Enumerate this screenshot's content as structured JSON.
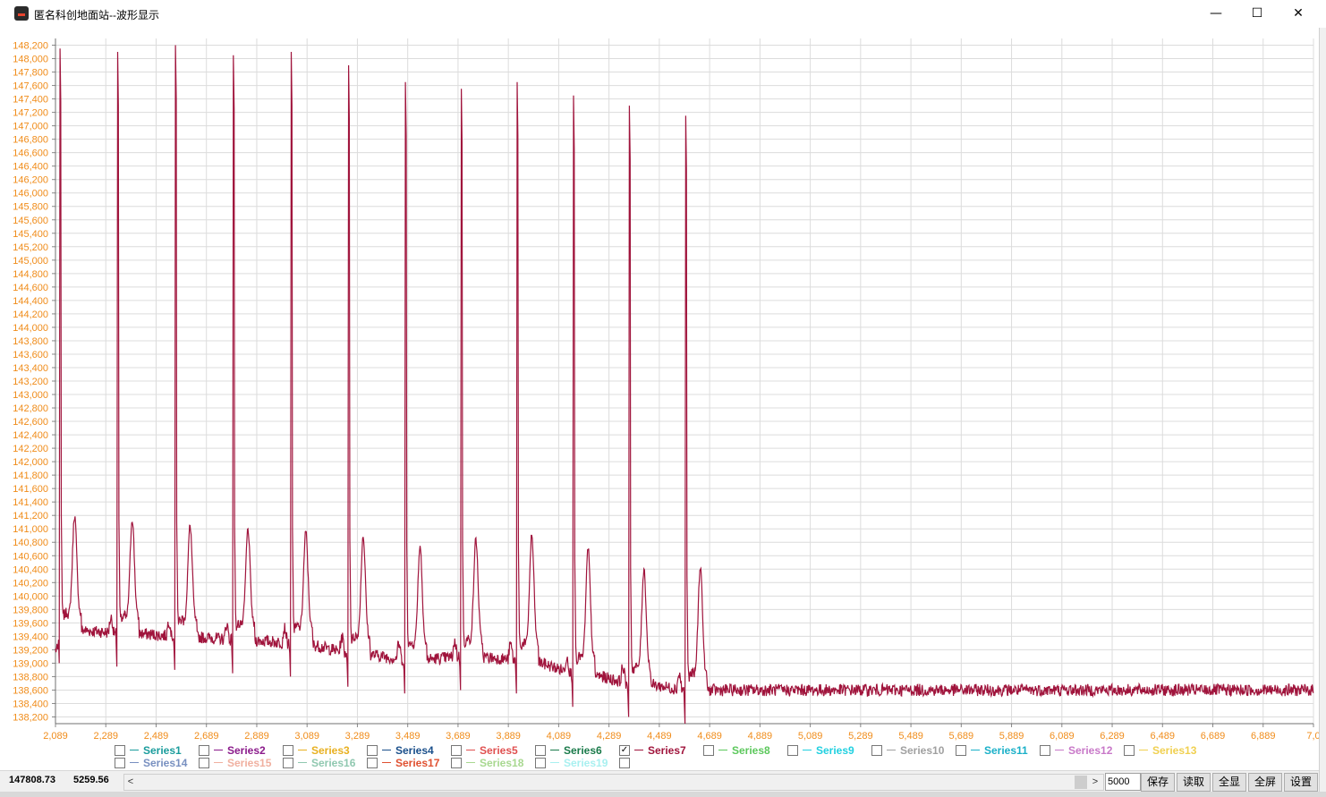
{
  "window": {
    "title": "匿名科创地面站--波形显示",
    "minimize": "—",
    "maximize": "☐",
    "close": "✕"
  },
  "colors": {
    "axis_label": "#f08c1a",
    "grid": "#dcdcdc",
    "series7": "#a0143c"
  },
  "chart_data": {
    "type": "line",
    "x_ticks": [
      "2,089",
      "2,289",
      "2,489",
      "2,689",
      "2,889",
      "3,089",
      "3,289",
      "3,489",
      "3,689",
      "3,889",
      "4,089",
      "4,289",
      "4,489",
      "4,689",
      "4,889",
      "5,089",
      "5,289",
      "5,489",
      "5,689",
      "5,889",
      "6,089",
      "6,289",
      "6,489",
      "6,689",
      "6,889",
      "7,0"
    ],
    "y_ticks": [
      "138,200",
      "138,400",
      "138,600",
      "138,800",
      "139,000",
      "139,200",
      "139,400",
      "139,600",
      "139,800",
      "140,000",
      "140,200",
      "140,400",
      "140,600",
      "140,800",
      "141,000",
      "141,200",
      "141,400",
      "141,600",
      "141,800",
      "142,000",
      "142,200",
      "142,400",
      "142,600",
      "142,800",
      "143,000",
      "143,200",
      "143,400",
      "143,600",
      "143,800",
      "144,000",
      "144,200",
      "144,400",
      "144,600",
      "144,800",
      "145,000",
      "145,200",
      "145,400",
      "145,600",
      "145,800",
      "146,000",
      "146,200",
      "146,400",
      "146,600",
      "146,800",
      "147,000",
      "147,200",
      "147,400",
      "147,600",
      "147,800",
      "148,000",
      "148,200"
    ],
    "xlim": [
      2089,
      7089
    ],
    "ylim": [
      138100,
      148300
    ],
    "series": [
      {
        "name": "Series7",
        "color": "#a0143c",
        "beats": [
          {
            "spike_x": 2107,
            "spike_y": 148150,
            "t_x": 2165,
            "t_y": 141200,
            "base_y": 139500
          },
          {
            "spike_x": 2336,
            "spike_y": 148100,
            "t_x": 2394,
            "t_y": 141150,
            "base_y": 139450
          },
          {
            "spike_x": 2566,
            "spike_y": 148200,
            "t_x": 2624,
            "t_y": 141050,
            "base_y": 139400
          },
          {
            "spike_x": 2796,
            "spike_y": 148050,
            "t_x": 2854,
            "t_y": 141000,
            "base_y": 139350
          },
          {
            "spike_x": 3026,
            "spike_y": 148100,
            "t_x": 3084,
            "t_y": 140950,
            "base_y": 139300
          },
          {
            "spike_x": 3254,
            "spike_y": 147900,
            "t_x": 3312,
            "t_y": 140900,
            "base_y": 139150
          },
          {
            "spike_x": 3480,
            "spike_y": 147650,
            "t_x": 3538,
            "t_y": 140750,
            "base_y": 139050
          },
          {
            "spike_x": 3702,
            "spike_y": 147550,
            "t_x": 3760,
            "t_y": 140850,
            "base_y": 139100
          },
          {
            "spike_x": 3924,
            "spike_y": 147650,
            "t_x": 3982,
            "t_y": 140900,
            "base_y": 139050
          },
          {
            "spike_x": 4148,
            "spike_y": 147450,
            "t_x": 4206,
            "t_y": 140700,
            "base_y": 138850
          },
          {
            "spike_x": 4370,
            "spike_y": 147300,
            "t_x": 4428,
            "t_y": 140400,
            "base_y": 138700
          },
          {
            "spike_x": 4594,
            "spike_y": 147150,
            "t_x": 4652,
            "t_y": 140450,
            "base_y": 138600
          }
        ],
        "first_base_y": 139200,
        "end_y": 138600
      }
    ],
    "legend": {
      "row1": [
        {
          "name": "Series1",
          "color": "#1a9c9c",
          "checked": false
        },
        {
          "name": "Series2",
          "color": "#8b1a8b",
          "checked": false
        },
        {
          "name": "Series3",
          "color": "#e8b020",
          "checked": false
        },
        {
          "name": "Series4",
          "color": "#1a4f8b",
          "checked": false
        },
        {
          "name": "Series5",
          "color": "#e05050",
          "checked": false
        },
        {
          "name": "Series6",
          "color": "#1a7a4a",
          "checked": false
        },
        {
          "name": "Series7",
          "color": "#a0143c",
          "checked": true
        },
        {
          "name": "Series8",
          "color": "#5cc85c",
          "checked": false
        },
        {
          "name": "Series9",
          "color": "#20d0e0",
          "checked": false
        },
        {
          "name": "Series10",
          "color": "#a0a0a0",
          "checked": false
        },
        {
          "name": "Series11",
          "color": "#1ab0c8",
          "checked": false
        },
        {
          "name": "Series12",
          "color": "#c878c8",
          "checked": false
        },
        {
          "name": "Series13",
          "color": "#f0d050",
          "checked": false
        }
      ],
      "row2": [
        {
          "name": "Series14",
          "color": "#7890c0",
          "checked": false
        },
        {
          "name": "Series15",
          "color": "#f0b0a0",
          "checked": false
        },
        {
          "name": "Series16",
          "color": "#90c8b0",
          "checked": false
        },
        {
          "name": "Series17",
          "color": "#e05030",
          "checked": false
        },
        {
          "name": "Series18",
          "color": "#a8d890",
          "checked": false
        },
        {
          "name": "Series19",
          "color": "#a8f0f0",
          "checked": false
        },
        {
          "name": "",
          "color": "#000000",
          "checked": false
        }
      ]
    }
  },
  "status": {
    "y_readout": "147808.73",
    "x_readout": "5259.56",
    "scroll_left": "<",
    "scroll_right": ">",
    "points_value": "5000",
    "buttons": [
      "保存",
      "读取",
      "全显",
      "全屏",
      "设置"
    ]
  }
}
